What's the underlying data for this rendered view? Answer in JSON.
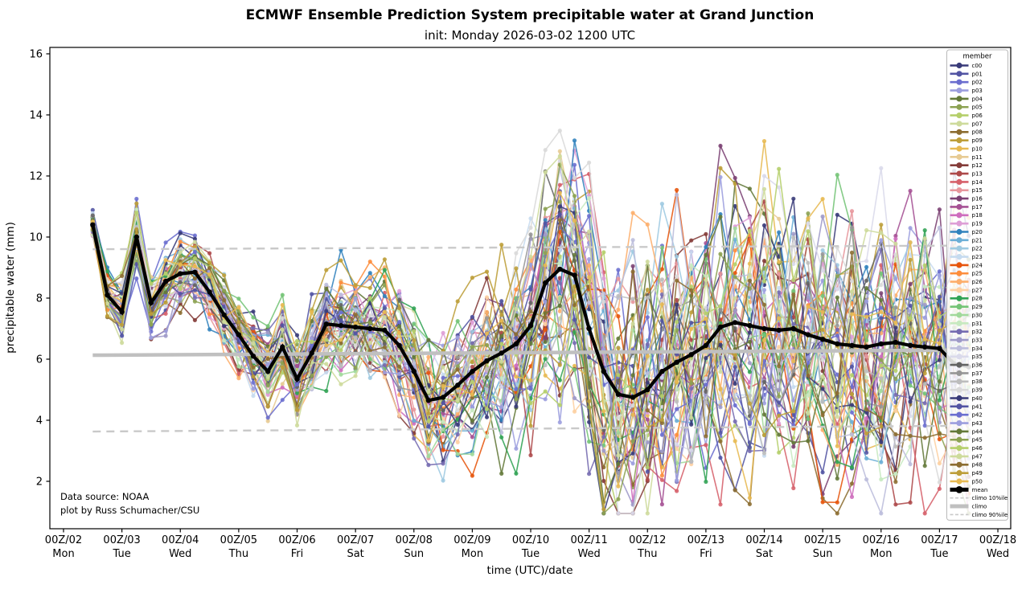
{
  "annotation": {
    "line1": "Data source: NOAA",
    "line2": "plot by Russ Schumacher/CSU"
  },
  "chart_data": {
    "type": "line",
    "title": "ECMWF Ensemble Prediction System precipitable water at Grand Junction",
    "subtitle": "init: Monday 2026-03-02 1200 UTC",
    "xlabel": "time (UTC)/date",
    "ylabel": "precipitable water (mm)",
    "legend_title": "member",
    "grid": false,
    "legend_position": "upper right",
    "xlim_days": [
      1.766,
      18.22
    ],
    "ylim": [
      0.447,
      16.21
    ],
    "y_ticks": [
      2,
      4,
      6,
      8,
      10,
      12,
      14,
      16
    ],
    "x_ticks": [
      {
        "day": 2,
        "label_top": "00Z/02",
        "label_bot": "Mon"
      },
      {
        "day": 3,
        "label_top": "00Z/03",
        "label_bot": "Tue"
      },
      {
        "day": 4,
        "label_top": "00Z/04",
        "label_bot": "Wed"
      },
      {
        "day": 5,
        "label_top": "00Z/05",
        "label_bot": "Thu"
      },
      {
        "day": 6,
        "label_top": "00Z/06",
        "label_bot": "Fri"
      },
      {
        "day": 7,
        "label_top": "00Z/07",
        "label_bot": "Sat"
      },
      {
        "day": 8,
        "label_top": "00Z/08",
        "label_bot": "Sun"
      },
      {
        "day": 9,
        "label_top": "00Z/09",
        "label_bot": "Mon"
      },
      {
        "day": 10,
        "label_top": "00Z/10",
        "label_bot": "Tue"
      },
      {
        "day": 11,
        "label_top": "00Z/11",
        "label_bot": "Wed"
      },
      {
        "day": 12,
        "label_top": "00Z/12",
        "label_bot": "Thu"
      },
      {
        "day": 13,
        "label_top": "00Z/13",
        "label_bot": "Fri"
      },
      {
        "day": 14,
        "label_top": "00Z/14",
        "label_bot": "Sat"
      },
      {
        "day": 15,
        "label_top": "00Z/15",
        "label_bot": "Sun"
      },
      {
        "day": 16,
        "label_top": "00Z/16",
        "label_bot": "Mon"
      },
      {
        "day": 17,
        "label_top": "00Z/17",
        "label_bot": "Tue"
      },
      {
        "day": 18,
        "label_top": "00Z/18",
        "label_bot": "Wed"
      }
    ],
    "forecast_hours": {
      "start": 0,
      "end": 360,
      "step": 6,
      "init_day_of_month": 2.5
    },
    "mean": {
      "name": "mean",
      "color": "#000000",
      "values": [
        10.4,
        8.1,
        7.55,
        10.0,
        7.85,
        8.55,
        8.8,
        8.85,
        8.2,
        7.45,
        6.8,
        6.1,
        5.6,
        6.4,
        5.35,
        6.2,
        7.15,
        7.1,
        7.05,
        7.0,
        6.95,
        6.45,
        5.6,
        4.65,
        4.75,
        5.15,
        5.6,
        5.95,
        6.2,
        6.5,
        7.1,
        8.5,
        8.95,
        8.75,
        7.0,
        5.6,
        4.85,
        4.75,
        5.0,
        5.6,
        5.9,
        6.15,
        6.45,
        7.05,
        7.2,
        7.1,
        7.0,
        6.95,
        7.0,
        6.8,
        6.65,
        6.5,
        6.45,
        6.4,
        6.5,
        6.55,
        6.45,
        6.4,
        6.35,
        5.85,
        5.75
      ]
    },
    "climo": {
      "hours": [
        12,
        360
      ],
      "p10": {
        "label": "climo 10%ile",
        "color": "#c9c9c9",
        "values": [
          3.63,
          3.82
        ]
      },
      "p50": {
        "label": "climo",
        "color": "#c0c0c0",
        "values": [
          6.13,
          6.3
        ]
      },
      "p90": {
        "label": "climo 90%ile",
        "color": "#c9c9c9",
        "values": [
          9.6,
          9.72
        ]
      }
    },
    "member_spread": {
      "note": "ensemble member curves reconstructed as mean + AR(1) noise scaled by sigma",
      "phi": 0.5,
      "seed": 20260302,
      "clamp_min": 0.95,
      "clamp_max": 15.2,
      "sigma": [
        0.18,
        0.35,
        0.55,
        0.5,
        0.5,
        0.55,
        0.55,
        0.6,
        0.6,
        0.65,
        0.7,
        0.75,
        0.8,
        0.8,
        0.85,
        0.85,
        0.9,
        0.9,
        0.95,
        0.95,
        1.0,
        1.0,
        1.05,
        1.1,
        1.15,
        1.2,
        1.25,
        1.3,
        1.4,
        1.6,
        1.8,
        2.0,
        2.1,
        2.2,
        2.3,
        2.3,
        2.3,
        2.25,
        2.2,
        2.2,
        2.2,
        2.15,
        2.1,
        2.1,
        2.15,
        2.2,
        2.2,
        2.2,
        2.2,
        2.25,
        2.25,
        2.3,
        2.3,
        2.3,
        2.35,
        2.35,
        2.4,
        2.4,
        2.45,
        2.5,
        2.55
      ]
    },
    "members": {
      "names": [
        "c00",
        "p01",
        "p02",
        "p03",
        "p04",
        "p05",
        "p06",
        "p07",
        "p08",
        "p09",
        "p10",
        "p11",
        "p12",
        "p13",
        "p14",
        "p15",
        "p16",
        "p17",
        "p18",
        "p19",
        "p20",
        "p21",
        "p22",
        "p23",
        "p24",
        "p25",
        "p26",
        "p27",
        "p28",
        "p29",
        "p30",
        "p31",
        "p32",
        "p33",
        "p34",
        "p35",
        "p36",
        "p37",
        "p38",
        "p39",
        "p40",
        "p41",
        "p42",
        "p43",
        "p44",
        "p45",
        "p46",
        "p47",
        "p48",
        "p49",
        "p50"
      ],
      "colors": [
        "#393b79",
        "#5254a3",
        "#6b6ecf",
        "#9c9ede",
        "#637939",
        "#8ca252",
        "#b5cf6b",
        "#cedb9c",
        "#8c6d31",
        "#bd9e39",
        "#e7ba52",
        "#e7cb94",
        "#843c39",
        "#ad494a",
        "#d6616b",
        "#e7969c",
        "#7b4173",
        "#a55194",
        "#ce6dbd",
        "#de9ed6",
        "#3182bd",
        "#6baed6",
        "#9ecae1",
        "#c6dbef",
        "#e6550d",
        "#fd8d3c",
        "#fdae6b",
        "#fdd0a2",
        "#31a354",
        "#74c476",
        "#a1d99b",
        "#c7e9c0",
        "#756bb1",
        "#9e9ac8",
        "#bcbddc",
        "#dadaeb",
        "#636363",
        "#969696",
        "#bdbdbd",
        "#d9d9d9",
        "#393b79",
        "#5254a3",
        "#6b6ecf",
        "#9c9ede",
        "#637939",
        "#8ca252",
        "#b5cf6b",
        "#cedb9c",
        "#8c6d31",
        "#bd9e39",
        "#e7ba52"
      ]
    },
    "legend_extra": [
      {
        "label": "mean",
        "color": "#000000",
        "width": 5,
        "marker": true,
        "dash": false
      },
      {
        "label": "climo 10%ile",
        "color": "#c9c9c9",
        "width": 1.6,
        "marker": false,
        "dash": true
      },
      {
        "label": "climo",
        "color": "#c0c0c0",
        "width": 5,
        "marker": false,
        "dash": false
      },
      {
        "label": "climo 90%ile",
        "color": "#c9c9c9",
        "width": 1.6,
        "marker": false,
        "dash": true
      }
    ]
  }
}
